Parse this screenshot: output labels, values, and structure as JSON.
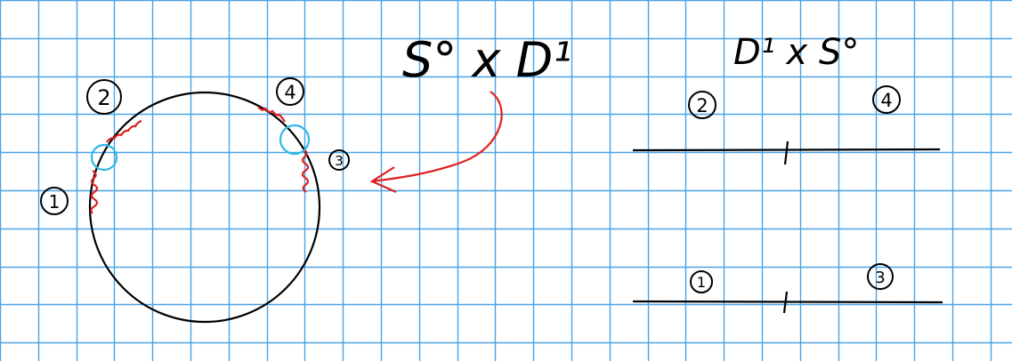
{
  "colors": {
    "grid": "#4aa3e6",
    "ink": "#000000",
    "red": "#e0201f",
    "cyan": "#2eb8e6"
  },
  "left_diagram": {
    "title": "S° x D¹",
    "labels": {
      "p1": "1",
      "p2": "2",
      "p3": "3",
      "p4": "4"
    }
  },
  "right_diagram": {
    "title": "D¹ x S°",
    "labels": {
      "p1": "1",
      "p2": "2",
      "p3": "3",
      "p4": "4"
    }
  }
}
